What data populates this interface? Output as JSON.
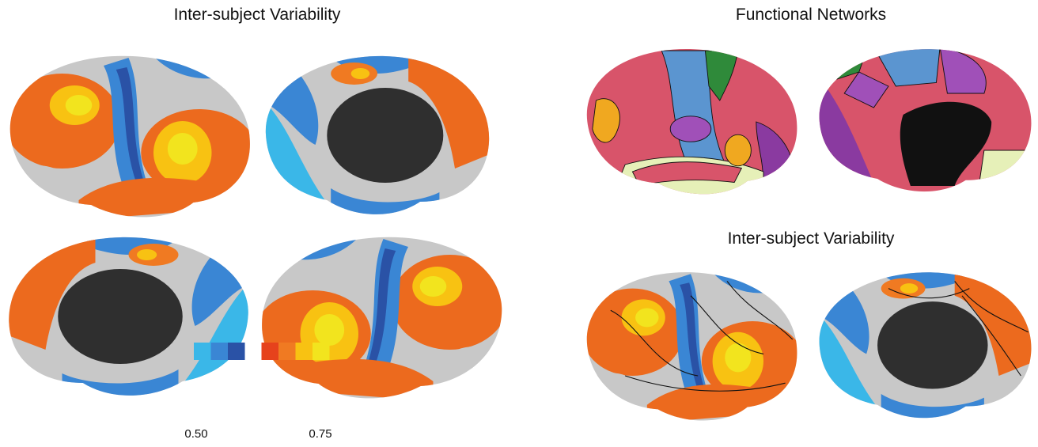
{
  "panels": [
    {
      "title": "Inter-subject Variability"
    },
    {
      "title": "Functional Networks"
    },
    {
      "title": "Inter-subject Variability"
    }
  ],
  "colorbar": {
    "min_label": "0.50",
    "max_label": "0.75",
    "groups": [
      [
        "#3ab7e8",
        "#3a86d4",
        "#2a52a6"
      ],
      [
        "#e6421c",
        "#f07a22",
        "#f8c212",
        "#f2e41e"
      ]
    ]
  }
}
